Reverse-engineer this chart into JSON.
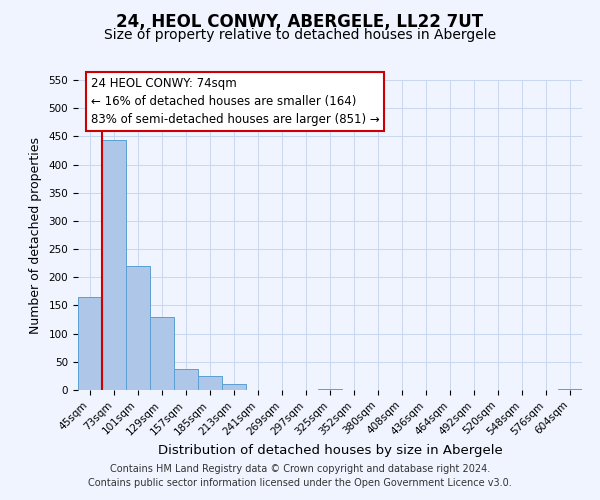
{
  "title": "24, HEOL CONWY, ABERGELE, LL22 7UT",
  "subtitle": "Size of property relative to detached houses in Abergele",
  "xlabel": "Distribution of detached houses by size in Abergele",
  "ylabel": "Number of detached properties",
  "bar_labels": [
    "45sqm",
    "73sqm",
    "101sqm",
    "129sqm",
    "157sqm",
    "185sqm",
    "213sqm",
    "241sqm",
    "269sqm",
    "297sqm",
    "325sqm",
    "352sqm",
    "380sqm",
    "408sqm",
    "436sqm",
    "464sqm",
    "492sqm",
    "520sqm",
    "548sqm",
    "576sqm",
    "604sqm"
  ],
  "bar_values": [
    165,
    443,
    220,
    130,
    37,
    25,
    10,
    0,
    0,
    0,
    2,
    0,
    0,
    0,
    0,
    0,
    0,
    0,
    0,
    0,
    2
  ],
  "bar_color": "#aec6e8",
  "bar_edge_color": "#5a9fd4",
  "ylim": [
    0,
    550
  ],
  "yticks": [
    0,
    50,
    100,
    150,
    200,
    250,
    300,
    350,
    400,
    450,
    500,
    550
  ],
  "vline_color": "#cc0000",
  "annotation_line1": "24 HEOL CONWY: 74sqm",
  "annotation_line2": "← 16% of detached houses are smaller (164)",
  "annotation_line3": "83% of semi-detached houses are larger (851) →",
  "footer_line1": "Contains HM Land Registry data © Crown copyright and database right 2024.",
  "footer_line2": "Contains public sector information licensed under the Open Government Licence v3.0.",
  "background_color": "#f0f4ff",
  "grid_color": "#c8d8f0",
  "title_fontsize": 12,
  "subtitle_fontsize": 10,
  "xlabel_fontsize": 9.5,
  "ylabel_fontsize": 9,
  "tick_fontsize": 7.5,
  "footer_fontsize": 7,
  "annotation_fontsize": 8.5
}
